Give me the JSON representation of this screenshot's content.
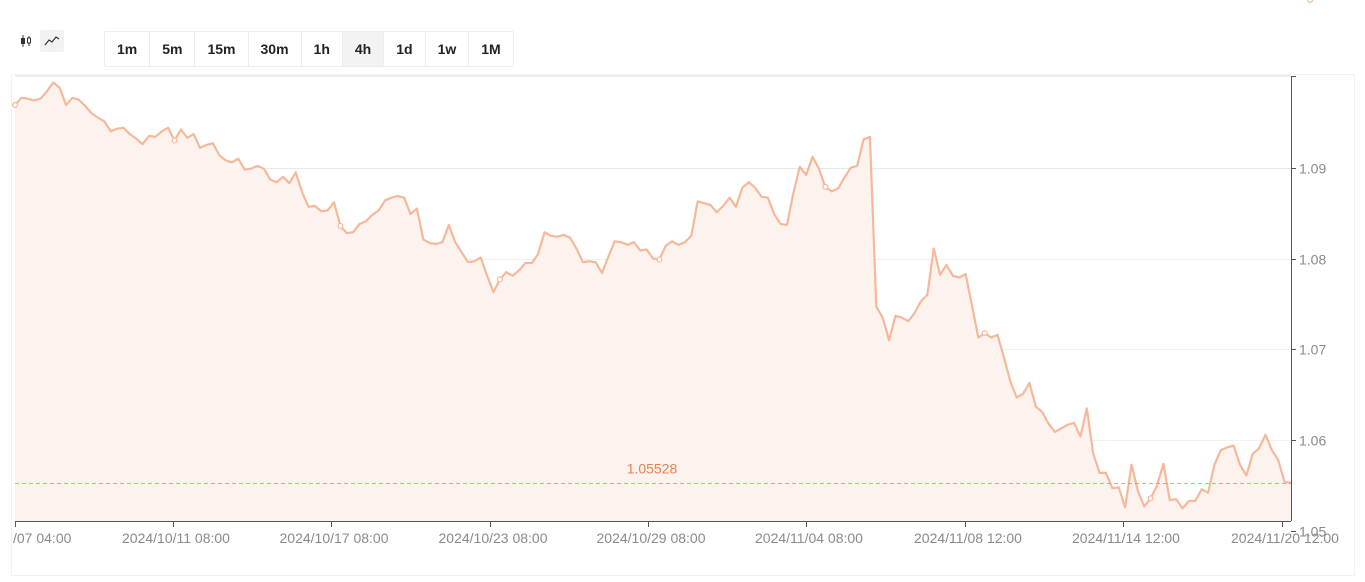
{
  "toolbar": {
    "chart_types": [
      {
        "name": "candlestick-icon",
        "active": false
      },
      {
        "name": "line-chart-icon",
        "active": true
      }
    ],
    "intervals": [
      "1m",
      "5m",
      "15m",
      "30m",
      "1h",
      "4h",
      "1d",
      "1w",
      "1M"
    ],
    "active_interval": "4h"
  },
  "colors": {
    "line": "#f5b89a",
    "fill": "#fdf3ee",
    "current_price": "#e8814d",
    "grid": "#e0e0e0",
    "axis": "#555555"
  },
  "chart_data": {
    "type": "area",
    "x_tick_labels": [
      "/07 04:00",
      "2024/10/11 08:00",
      "2024/10/17 08:00",
      "2024/10/23 08:00",
      "2024/10/29 08:00",
      "2024/11/04 08:00",
      "2024/11/08 12:00",
      "2024/11/14 12:00",
      "2024/11/20 12:00"
    ],
    "y_tick_labels": [
      "1.09",
      "1.08",
      "1.07",
      "1.06",
      "1.05"
    ],
    "y_ticks": [
      1.09,
      1.08,
      1.07,
      1.06,
      1.05
    ],
    "ylim": [
      1.0511,
      1.1001
    ],
    "current_price": 1.05528,
    "current_price_label": "1.05528",
    "grid": true,
    "values": [
      1.0969,
      1.0977,
      1.0976,
      1.0974,
      1.0976,
      1.0984,
      1.0994,
      1.0988,
      1.0969,
      1.0977,
      1.0975,
      1.0968,
      1.096,
      1.0955,
      1.0951,
      1.094,
      1.0943,
      1.0944,
      1.0937,
      1.0932,
      1.0926,
      1.0935,
      1.0934,
      1.094,
      1.0944,
      1.093,
      1.0942,
      1.0933,
      1.0937,
      1.0922,
      1.0925,
      1.0927,
      1.0914,
      1.0908,
      1.0906,
      1.091,
      1.0898,
      1.0899,
      1.0902,
      1.0899,
      1.0887,
      1.0884,
      1.089,
      1.0883,
      1.0895,
      1.0873,
      1.0857,
      1.0858,
      1.0852,
      1.0853,
      1.0862,
      1.0836,
      1.0828,
      1.0829,
      1.0838,
      1.0841,
      1.0848,
      1.0853,
      1.0864,
      1.0867,
      1.0869,
      1.0867,
      1.0849,
      1.0855,
      1.0821,
      1.0817,
      1.0816,
      1.0818,
      1.0837,
      1.0818,
      1.0807,
      1.0796,
      1.0797,
      1.0801,
      1.0781,
      1.0763,
      1.0777,
      1.0785,
      1.0781,
      1.0787,
      1.0795,
      1.0795,
      1.0805,
      1.0829,
      1.0825,
      1.0824,
      1.0826,
      1.0823,
      1.0811,
      1.0796,
      1.0797,
      1.0796,
      1.0784,
      1.0802,
      1.0819,
      1.0818,
      1.0815,
      1.0818,
      1.0809,
      1.081,
      1.08,
      1.0799,
      1.0814,
      1.0819,
      1.0815,
      1.0818,
      1.0825,
      1.0863,
      1.0861,
      1.0859,
      1.0851,
      1.0858,
      1.0867,
      1.0857,
      1.0878,
      1.0884,
      1.0878,
      1.0868,
      1.0867,
      1.0849,
      1.0838,
      1.0837,
      1.0872,
      1.0901,
      1.0892,
      1.0912,
      1.0899,
      1.0879,
      1.0874,
      1.0877,
      1.0889,
      1.09,
      1.0902,
      1.0931,
      1.0934,
      1.0747,
      1.0735,
      1.071,
      1.0737,
      1.0735,
      1.0731,
      1.074,
      1.0753,
      1.076,
      1.0811,
      1.0782,
      1.0793,
      1.0781,
      1.0779,
      1.0783,
      1.0748,
      1.0713,
      1.0718,
      1.0713,
      1.0716,
      1.0691,
      1.0665,
      1.0647,
      1.0651,
      1.0663,
      1.0637,
      1.0631,
      1.0618,
      1.0609,
      1.0613,
      1.0617,
      1.0619,
      1.0604,
      1.0635,
      1.0585,
      1.0564,
      1.0564,
      1.0547,
      1.0548,
      1.0526,
      1.0573,
      1.0544,
      1.0527,
      1.0536,
      1.055,
      1.0574,
      1.0534,
      1.0535,
      1.0525,
      1.0533,
      1.0533,
      1.0546,
      1.0542,
      1.0573,
      1.0589,
      1.0592,
      1.0594,
      1.0573,
      1.0561,
      1.0585,
      1.0591,
      1.0606,
      1.0589,
      1.0578,
      1.0554,
      1.0553
    ],
    "markers": [
      0,
      25,
      51,
      76,
      101,
      127,
      152,
      178,
      203
    ]
  }
}
